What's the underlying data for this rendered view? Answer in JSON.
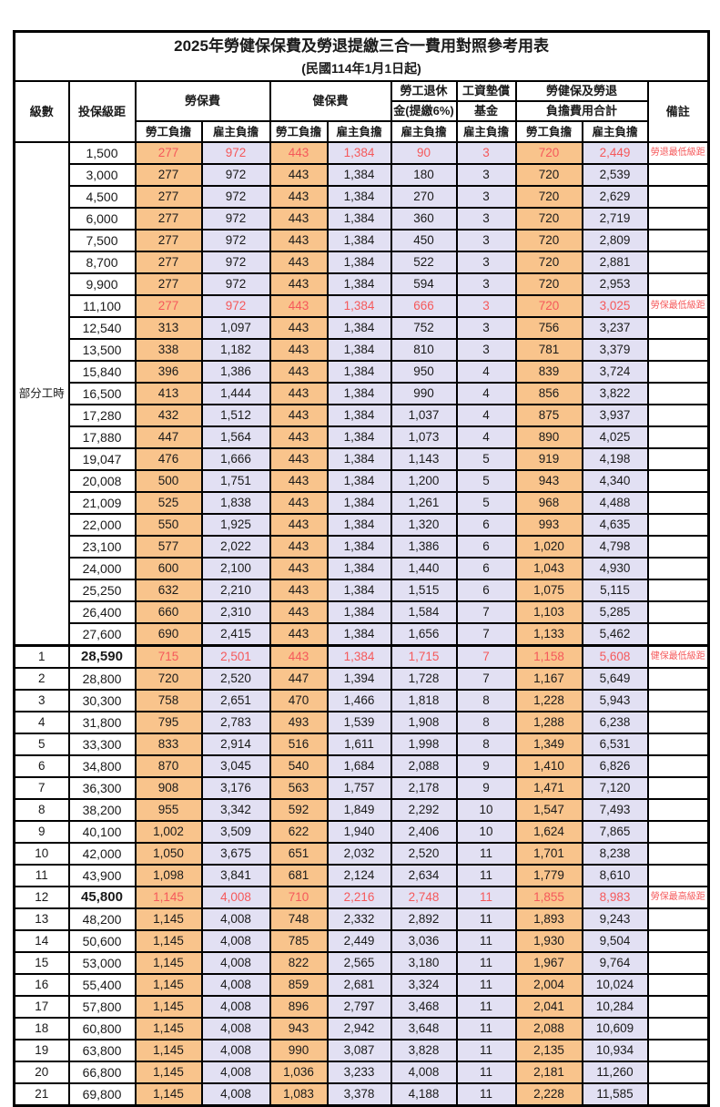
{
  "title": "2025年勞健保保費及勞退提繳三合一費用對照參考用表",
  "subtitle": "(民國114年1月1日起)",
  "header": {
    "level": "級數",
    "bracket": "投保級距",
    "labor_insurance": "勞保費",
    "health_insurance": "健保費",
    "pension_line1": "勞工退休",
    "pension_line2": "金(提繳6%)",
    "wage_fund_line1": "工資墊償",
    "wage_fund_line2": "基金",
    "total_line1": "勞健保及勞退",
    "total_line2": "負擔費用合計",
    "employee": "勞工負擔",
    "employer": "雇主負擔",
    "remark": "備註"
  },
  "group": {
    "label": "部分工時",
    "row_count": 23
  },
  "colors": {
    "employee_bg": "#F9C48C",
    "employer_bg": "#E2E0F3",
    "highlight_text": "#F5595B",
    "border": "#000000"
  },
  "rows": [
    {
      "level": "",
      "bracket": "1,500",
      "li_emp": "277",
      "li_er": "972",
      "hi_emp": "443",
      "hi_er": "1,384",
      "pension": "90",
      "fund": "3",
      "tot_emp": "720",
      "tot_er": "2,449",
      "remark": "勞退最低級距",
      "highlight": true,
      "bold": false
    },
    {
      "level": "",
      "bracket": "3,000",
      "li_emp": "277",
      "li_er": "972",
      "hi_emp": "443",
      "hi_er": "1,384",
      "pension": "180",
      "fund": "3",
      "tot_emp": "720",
      "tot_er": "2,539",
      "remark": "",
      "highlight": false,
      "bold": false
    },
    {
      "level": "",
      "bracket": "4,500",
      "li_emp": "277",
      "li_er": "972",
      "hi_emp": "443",
      "hi_er": "1,384",
      "pension": "270",
      "fund": "3",
      "tot_emp": "720",
      "tot_er": "2,629",
      "remark": "",
      "highlight": false,
      "bold": false
    },
    {
      "level": "",
      "bracket": "6,000",
      "li_emp": "277",
      "li_er": "972",
      "hi_emp": "443",
      "hi_er": "1,384",
      "pension": "360",
      "fund": "3",
      "tot_emp": "720",
      "tot_er": "2,719",
      "remark": "",
      "highlight": false,
      "bold": false
    },
    {
      "level": "",
      "bracket": "7,500",
      "li_emp": "277",
      "li_er": "972",
      "hi_emp": "443",
      "hi_er": "1,384",
      "pension": "450",
      "fund": "3",
      "tot_emp": "720",
      "tot_er": "2,809",
      "remark": "",
      "highlight": false,
      "bold": false
    },
    {
      "level": "",
      "bracket": "8,700",
      "li_emp": "277",
      "li_er": "972",
      "hi_emp": "443",
      "hi_er": "1,384",
      "pension": "522",
      "fund": "3",
      "tot_emp": "720",
      "tot_er": "2,881",
      "remark": "",
      "highlight": false,
      "bold": false
    },
    {
      "level": "",
      "bracket": "9,900",
      "li_emp": "277",
      "li_er": "972",
      "hi_emp": "443",
      "hi_er": "1,384",
      "pension": "594",
      "fund": "3",
      "tot_emp": "720",
      "tot_er": "2,953",
      "remark": "",
      "highlight": false,
      "bold": false
    },
    {
      "level": "",
      "bracket": "11,100",
      "li_emp": "277",
      "li_er": "972",
      "hi_emp": "443",
      "hi_er": "1,384",
      "pension": "666",
      "fund": "3",
      "tot_emp": "720",
      "tot_er": "3,025",
      "remark": "勞保最低級距",
      "highlight": true,
      "bold": false
    },
    {
      "level": "",
      "bracket": "12,540",
      "li_emp": "313",
      "li_er": "1,097",
      "hi_emp": "443",
      "hi_er": "1,384",
      "pension": "752",
      "fund": "3",
      "tot_emp": "756",
      "tot_er": "3,237",
      "remark": "",
      "highlight": false,
      "bold": false
    },
    {
      "level": "",
      "bracket": "13,500",
      "li_emp": "338",
      "li_er": "1,182",
      "hi_emp": "443",
      "hi_er": "1,384",
      "pension": "810",
      "fund": "3",
      "tot_emp": "781",
      "tot_er": "3,379",
      "remark": "",
      "highlight": false,
      "bold": false
    },
    {
      "level": "",
      "bracket": "15,840",
      "li_emp": "396",
      "li_er": "1,386",
      "hi_emp": "443",
      "hi_er": "1,384",
      "pension": "950",
      "fund": "4",
      "tot_emp": "839",
      "tot_er": "3,724",
      "remark": "",
      "highlight": false,
      "bold": false
    },
    {
      "level": "",
      "bracket": "16,500",
      "li_emp": "413",
      "li_er": "1,444",
      "hi_emp": "443",
      "hi_er": "1,384",
      "pension": "990",
      "fund": "4",
      "tot_emp": "856",
      "tot_er": "3,822",
      "remark": "",
      "highlight": false,
      "bold": false
    },
    {
      "level": "",
      "bracket": "17,280",
      "li_emp": "432",
      "li_er": "1,512",
      "hi_emp": "443",
      "hi_er": "1,384",
      "pension": "1,037",
      "fund": "4",
      "tot_emp": "875",
      "tot_er": "3,937",
      "remark": "",
      "highlight": false,
      "bold": false
    },
    {
      "level": "",
      "bracket": "17,880",
      "li_emp": "447",
      "li_er": "1,564",
      "hi_emp": "443",
      "hi_er": "1,384",
      "pension": "1,073",
      "fund": "4",
      "tot_emp": "890",
      "tot_er": "4,025",
      "remark": "",
      "highlight": false,
      "bold": false
    },
    {
      "level": "",
      "bracket": "19,047",
      "li_emp": "476",
      "li_er": "1,666",
      "hi_emp": "443",
      "hi_er": "1,384",
      "pension": "1,143",
      "fund": "5",
      "tot_emp": "919",
      "tot_er": "4,198",
      "remark": "",
      "highlight": false,
      "bold": false
    },
    {
      "level": "",
      "bracket": "20,008",
      "li_emp": "500",
      "li_er": "1,751",
      "hi_emp": "443",
      "hi_er": "1,384",
      "pension": "1,200",
      "fund": "5",
      "tot_emp": "943",
      "tot_er": "4,340",
      "remark": "",
      "highlight": false,
      "bold": false
    },
    {
      "level": "",
      "bracket": "21,009",
      "li_emp": "525",
      "li_er": "1,838",
      "hi_emp": "443",
      "hi_er": "1,384",
      "pension": "1,261",
      "fund": "5",
      "tot_emp": "968",
      "tot_er": "4,488",
      "remark": "",
      "highlight": false,
      "bold": false
    },
    {
      "level": "",
      "bracket": "22,000",
      "li_emp": "550",
      "li_er": "1,925",
      "hi_emp": "443",
      "hi_er": "1,384",
      "pension": "1,320",
      "fund": "6",
      "tot_emp": "993",
      "tot_er": "4,635",
      "remark": "",
      "highlight": false,
      "bold": false
    },
    {
      "level": "",
      "bracket": "23,100",
      "li_emp": "577",
      "li_er": "2,022",
      "hi_emp": "443",
      "hi_er": "1,384",
      "pension": "1,386",
      "fund": "6",
      "tot_emp": "1,020",
      "tot_er": "4,798",
      "remark": "",
      "highlight": false,
      "bold": false
    },
    {
      "level": "",
      "bracket": "24,000",
      "li_emp": "600",
      "li_er": "2,100",
      "hi_emp": "443",
      "hi_er": "1,384",
      "pension": "1,440",
      "fund": "6",
      "tot_emp": "1,043",
      "tot_er": "4,930",
      "remark": "",
      "highlight": false,
      "bold": false
    },
    {
      "level": "",
      "bracket": "25,250",
      "li_emp": "632",
      "li_er": "2,210",
      "hi_emp": "443",
      "hi_er": "1,384",
      "pension": "1,515",
      "fund": "6",
      "tot_emp": "1,075",
      "tot_er": "5,115",
      "remark": "",
      "highlight": false,
      "bold": false
    },
    {
      "level": "",
      "bracket": "26,400",
      "li_emp": "660",
      "li_er": "2,310",
      "hi_emp": "443",
      "hi_er": "1,384",
      "pension": "1,584",
      "fund": "7",
      "tot_emp": "1,103",
      "tot_er": "5,285",
      "remark": "",
      "highlight": false,
      "bold": false
    },
    {
      "level": "",
      "bracket": "27,600",
      "li_emp": "690",
      "li_er": "2,415",
      "hi_emp": "443",
      "hi_er": "1,384",
      "pension": "1,656",
      "fund": "7",
      "tot_emp": "1,133",
      "tot_er": "5,462",
      "remark": "",
      "highlight": false,
      "bold": false
    },
    {
      "level": "1",
      "bracket": "28,590",
      "li_emp": "715",
      "li_er": "2,501",
      "hi_emp": "443",
      "hi_er": "1,384",
      "pension": "1,715",
      "fund": "7",
      "tot_emp": "1,158",
      "tot_er": "5,608",
      "remark": "健保最低級距",
      "highlight": true,
      "bold": true
    },
    {
      "level": "2",
      "bracket": "28,800",
      "li_emp": "720",
      "li_er": "2,520",
      "hi_emp": "447",
      "hi_er": "1,394",
      "pension": "1,728",
      "fund": "7",
      "tot_emp": "1,167",
      "tot_er": "5,649",
      "remark": "",
      "highlight": false,
      "bold": false
    },
    {
      "level": "3",
      "bracket": "30,300",
      "li_emp": "758",
      "li_er": "2,651",
      "hi_emp": "470",
      "hi_er": "1,466",
      "pension": "1,818",
      "fund": "8",
      "tot_emp": "1,228",
      "tot_er": "5,943",
      "remark": "",
      "highlight": false,
      "bold": false
    },
    {
      "level": "4",
      "bracket": "31,800",
      "li_emp": "795",
      "li_er": "2,783",
      "hi_emp": "493",
      "hi_er": "1,539",
      "pension": "1,908",
      "fund": "8",
      "tot_emp": "1,288",
      "tot_er": "6,238",
      "remark": "",
      "highlight": false,
      "bold": false
    },
    {
      "level": "5",
      "bracket": "33,300",
      "li_emp": "833",
      "li_er": "2,914",
      "hi_emp": "516",
      "hi_er": "1,611",
      "pension": "1,998",
      "fund": "8",
      "tot_emp": "1,349",
      "tot_er": "6,531",
      "remark": "",
      "highlight": false,
      "bold": false
    },
    {
      "level": "6",
      "bracket": "34,800",
      "li_emp": "870",
      "li_er": "3,045",
      "hi_emp": "540",
      "hi_er": "1,684",
      "pension": "2,088",
      "fund": "9",
      "tot_emp": "1,410",
      "tot_er": "6,826",
      "remark": "",
      "highlight": false,
      "bold": false
    },
    {
      "level": "7",
      "bracket": "36,300",
      "li_emp": "908",
      "li_er": "3,176",
      "hi_emp": "563",
      "hi_er": "1,757",
      "pension": "2,178",
      "fund": "9",
      "tot_emp": "1,471",
      "tot_er": "7,120",
      "remark": "",
      "highlight": false,
      "bold": false
    },
    {
      "level": "8",
      "bracket": "38,200",
      "li_emp": "955",
      "li_er": "3,342",
      "hi_emp": "592",
      "hi_er": "1,849",
      "pension": "2,292",
      "fund": "10",
      "tot_emp": "1,547",
      "tot_er": "7,493",
      "remark": "",
      "highlight": false,
      "bold": false
    },
    {
      "level": "9",
      "bracket": "40,100",
      "li_emp": "1,002",
      "li_er": "3,509",
      "hi_emp": "622",
      "hi_er": "1,940",
      "pension": "2,406",
      "fund": "10",
      "tot_emp": "1,624",
      "tot_er": "7,865",
      "remark": "",
      "highlight": false,
      "bold": false
    },
    {
      "level": "10",
      "bracket": "42,000",
      "li_emp": "1,050",
      "li_er": "3,675",
      "hi_emp": "651",
      "hi_er": "2,032",
      "pension": "2,520",
      "fund": "11",
      "tot_emp": "1,701",
      "tot_er": "8,238",
      "remark": "",
      "highlight": false,
      "bold": false
    },
    {
      "level": "11",
      "bracket": "43,900",
      "li_emp": "1,098",
      "li_er": "3,841",
      "hi_emp": "681",
      "hi_er": "2,124",
      "pension": "2,634",
      "fund": "11",
      "tot_emp": "1,779",
      "tot_er": "8,610",
      "remark": "",
      "highlight": false,
      "bold": false
    },
    {
      "level": "12",
      "bracket": "45,800",
      "li_emp": "1,145",
      "li_er": "4,008",
      "hi_emp": "710",
      "hi_er": "2,216",
      "pension": "2,748",
      "fund": "11",
      "tot_emp": "1,855",
      "tot_er": "8,983",
      "remark": "勞保最高級距",
      "highlight": true,
      "bold": true
    },
    {
      "level": "13",
      "bracket": "48,200",
      "li_emp": "1,145",
      "li_er": "4,008",
      "hi_emp": "748",
      "hi_er": "2,332",
      "pension": "2,892",
      "fund": "11",
      "tot_emp": "1,893",
      "tot_er": "9,243",
      "remark": "",
      "highlight": false,
      "bold": false
    },
    {
      "level": "14",
      "bracket": "50,600",
      "li_emp": "1,145",
      "li_er": "4,008",
      "hi_emp": "785",
      "hi_er": "2,449",
      "pension": "3,036",
      "fund": "11",
      "tot_emp": "1,930",
      "tot_er": "9,504",
      "remark": "",
      "highlight": false,
      "bold": false
    },
    {
      "level": "15",
      "bracket": "53,000",
      "li_emp": "1,145",
      "li_er": "4,008",
      "hi_emp": "822",
      "hi_er": "2,565",
      "pension": "3,180",
      "fund": "11",
      "tot_emp": "1,967",
      "tot_er": "9,764",
      "remark": "",
      "highlight": false,
      "bold": false
    },
    {
      "level": "16",
      "bracket": "55,400",
      "li_emp": "1,145",
      "li_er": "4,008",
      "hi_emp": "859",
      "hi_er": "2,681",
      "pension": "3,324",
      "fund": "11",
      "tot_emp": "2,004",
      "tot_er": "10,024",
      "remark": "",
      "highlight": false,
      "bold": false
    },
    {
      "level": "17",
      "bracket": "57,800",
      "li_emp": "1,145",
      "li_er": "4,008",
      "hi_emp": "896",
      "hi_er": "2,797",
      "pension": "3,468",
      "fund": "11",
      "tot_emp": "2,041",
      "tot_er": "10,284",
      "remark": "",
      "highlight": false,
      "bold": false
    },
    {
      "level": "18",
      "bracket": "60,800",
      "li_emp": "1,145",
      "li_er": "4,008",
      "hi_emp": "943",
      "hi_er": "2,942",
      "pension": "3,648",
      "fund": "11",
      "tot_emp": "2,088",
      "tot_er": "10,609",
      "remark": "",
      "highlight": false,
      "bold": false
    },
    {
      "level": "19",
      "bracket": "63,800",
      "li_emp": "1,145",
      "li_er": "4,008",
      "hi_emp": "990",
      "hi_er": "3,087",
      "pension": "3,828",
      "fund": "11",
      "tot_emp": "2,135",
      "tot_er": "10,934",
      "remark": "",
      "highlight": false,
      "bold": false
    },
    {
      "level": "20",
      "bracket": "66,800",
      "li_emp": "1,145",
      "li_er": "4,008",
      "hi_emp": "1,036",
      "hi_er": "3,233",
      "pension": "4,008",
      "fund": "11",
      "tot_emp": "2,181",
      "tot_er": "11,260",
      "remark": "",
      "highlight": false,
      "bold": false
    },
    {
      "level": "21",
      "bracket": "69,800",
      "li_emp": "1,145",
      "li_er": "4,008",
      "hi_emp": "1,083",
      "hi_er": "3,378",
      "pension": "4,188",
      "fund": "11",
      "tot_emp": "2,228",
      "tot_er": "11,585",
      "remark": "",
      "highlight": false,
      "bold": false
    }
  ]
}
